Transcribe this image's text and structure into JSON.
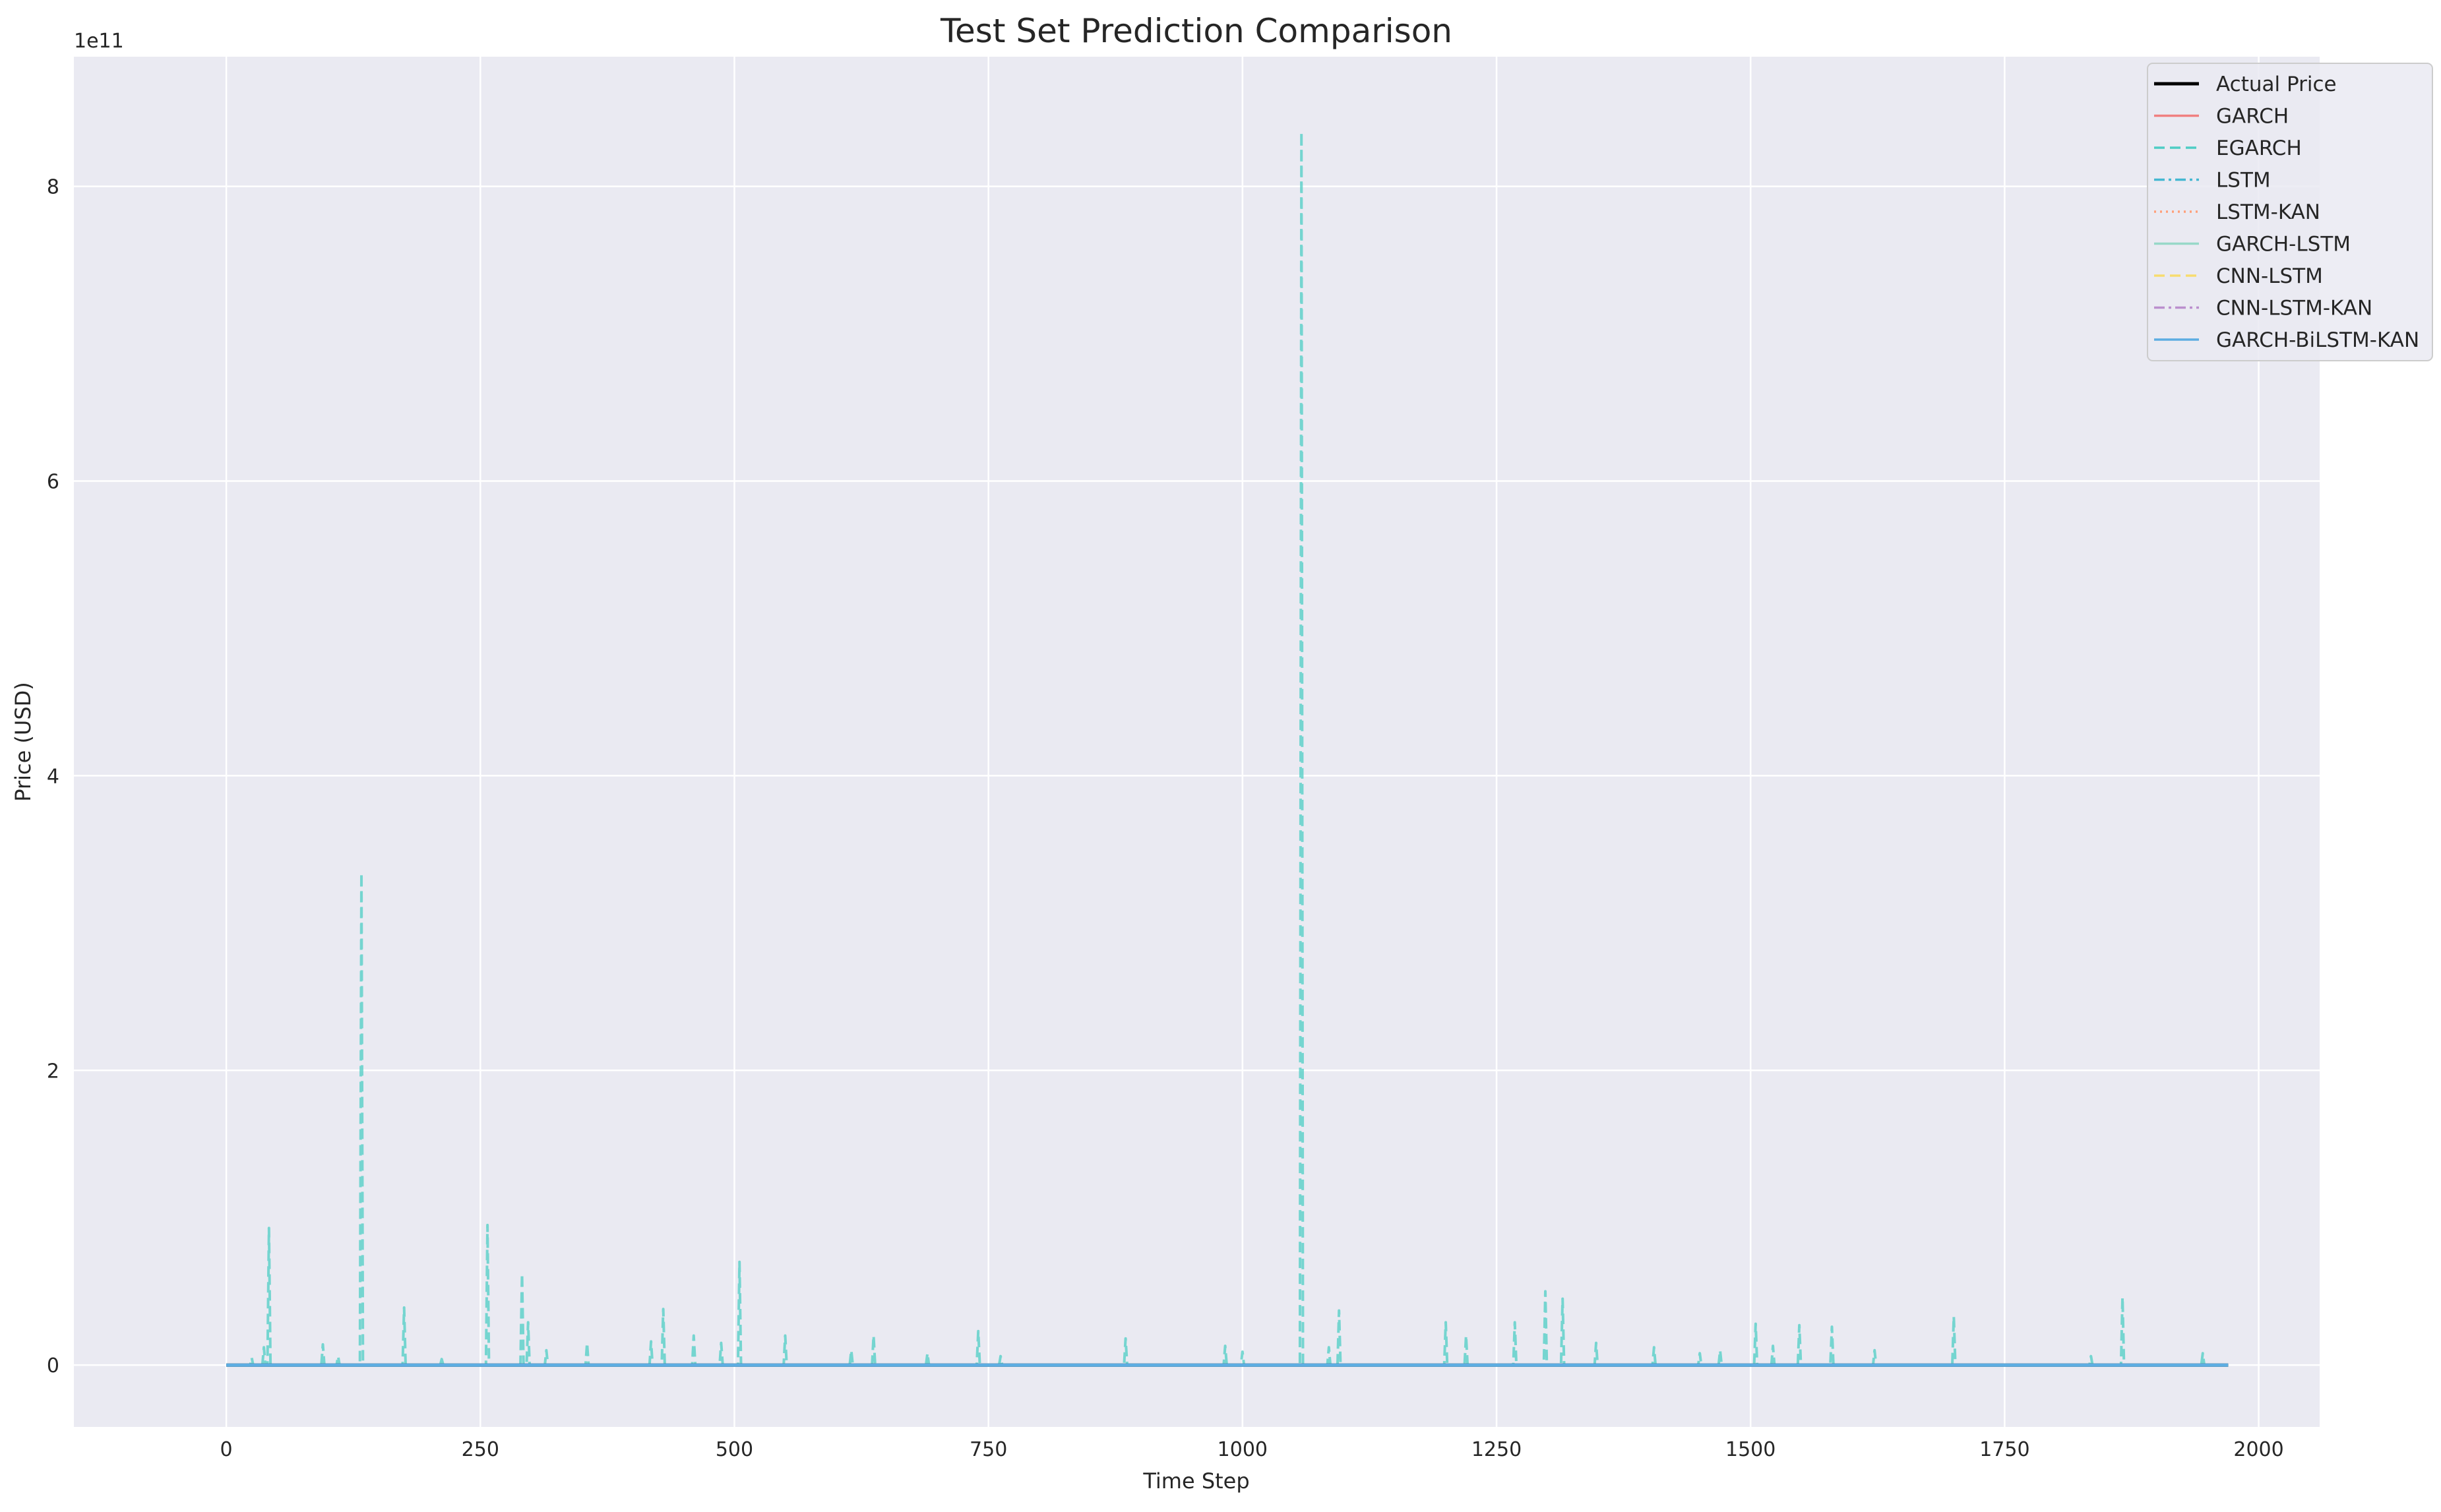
{
  "chart_data": {
    "type": "line",
    "title": "Test Set Prediction Comparison",
    "xlabel": "Time Step",
    "ylabel": "Price (USD)",
    "y_offset_label": "1e11",
    "xlim": [
      -150,
      2060
    ],
    "ylim": [
      -0.42,
      8.88
    ],
    "xticks": [
      0,
      250,
      500,
      750,
      1000,
      1250,
      1500,
      1750,
      2000
    ],
    "xtick_labels": [
      "0",
      "250",
      "500",
      "750",
      "1000",
      "1250",
      "1500",
      "1750",
      "2000"
    ],
    "yticks": [
      0,
      2,
      4,
      6,
      8
    ],
    "ytick_labels": [
      "0",
      "2",
      "4",
      "6",
      "8"
    ],
    "y_unit_multiplier": 100000000000.0,
    "grid": true,
    "legend_position": "top-right",
    "x_range": [
      0,
      1970
    ],
    "series": [
      {
        "name": "Actual Price",
        "color": "#000000",
        "dash": "solid",
        "width": 5,
        "baseline": 0.0
      },
      {
        "name": "GARCH",
        "color": "#f08080",
        "dash": "solid",
        "width": 3,
        "baseline": 0.0
      },
      {
        "name": "EGARCH",
        "color": "#4ecdc4",
        "dash": "dashed",
        "width": 4,
        "opacity": 0.75,
        "baseline": 0.0,
        "spikes": [
          {
            "x": 25,
            "y": 0.05
          },
          {
            "x": 37,
            "y": 0.12
          },
          {
            "x": 42,
            "y": 0.93
          },
          {
            "x": 95,
            "y": 0.14
          },
          {
            "x": 110,
            "y": 0.06
          },
          {
            "x": 133,
            "y": 3.34
          },
          {
            "x": 175,
            "y": 0.39
          },
          {
            "x": 212,
            "y": 0.04
          },
          {
            "x": 257,
            "y": 0.95
          },
          {
            "x": 291,
            "y": 0.62
          },
          {
            "x": 297,
            "y": 0.29
          },
          {
            "x": 315,
            "y": 0.1
          },
          {
            "x": 355,
            "y": 0.15
          },
          {
            "x": 418,
            "y": 0.16
          },
          {
            "x": 430,
            "y": 0.38
          },
          {
            "x": 460,
            "y": 0.2
          },
          {
            "x": 487,
            "y": 0.15
          },
          {
            "x": 505,
            "y": 0.7
          },
          {
            "x": 550,
            "y": 0.2
          },
          {
            "x": 615,
            "y": 0.1
          },
          {
            "x": 637,
            "y": 0.2
          },
          {
            "x": 690,
            "y": 0.08
          },
          {
            "x": 740,
            "y": 0.23
          },
          {
            "x": 762,
            "y": 0.06
          },
          {
            "x": 885,
            "y": 0.18
          },
          {
            "x": 983,
            "y": 0.13
          },
          {
            "x": 1000,
            "y": 0.09
          },
          {
            "x": 1058,
            "y": 8.37
          },
          {
            "x": 1085,
            "y": 0.12
          },
          {
            "x": 1095,
            "y": 0.37
          },
          {
            "x": 1200,
            "y": 0.29
          },
          {
            "x": 1220,
            "y": 0.2
          },
          {
            "x": 1268,
            "y": 0.29
          },
          {
            "x": 1298,
            "y": 0.5
          },
          {
            "x": 1315,
            "y": 0.45
          },
          {
            "x": 1348,
            "y": 0.15
          },
          {
            "x": 1405,
            "y": 0.12
          },
          {
            "x": 1450,
            "y": 0.08
          },
          {
            "x": 1470,
            "y": 0.1
          },
          {
            "x": 1505,
            "y": 0.28
          },
          {
            "x": 1522,
            "y": 0.13
          },
          {
            "x": 1548,
            "y": 0.27
          },
          {
            "x": 1580,
            "y": 0.26
          },
          {
            "x": 1622,
            "y": 0.1
          },
          {
            "x": 1700,
            "y": 0.33
          },
          {
            "x": 1835,
            "y": 0.06
          },
          {
            "x": 1866,
            "y": 0.46
          },
          {
            "x": 1945,
            "y": 0.08
          }
        ]
      },
      {
        "name": "LSTM",
        "color": "#45b7d1",
        "dash": "dashdot",
        "width": 3,
        "baseline": 0.0
      },
      {
        "name": "LSTM-KAN",
        "color": "#ffa07a",
        "dash": "dotted",
        "width": 3,
        "baseline": 0.0
      },
      {
        "name": "GARCH-LSTM",
        "color": "#98d8c8",
        "dash": "solid",
        "width": 3,
        "baseline": 0.0
      },
      {
        "name": "CNN-LSTM",
        "color": "#f7dc6f",
        "dash": "dashed",
        "width": 3,
        "baseline": 0.0
      },
      {
        "name": "CNN-LSTM-KAN",
        "color": "#bb8fce",
        "dash": "dashdot",
        "width": 3,
        "baseline": 0.0
      },
      {
        "name": "GARCH-BiLSTM-KAN",
        "color": "#5dade2",
        "dash": "solid",
        "width": 5,
        "baseline": 0.0
      }
    ]
  }
}
